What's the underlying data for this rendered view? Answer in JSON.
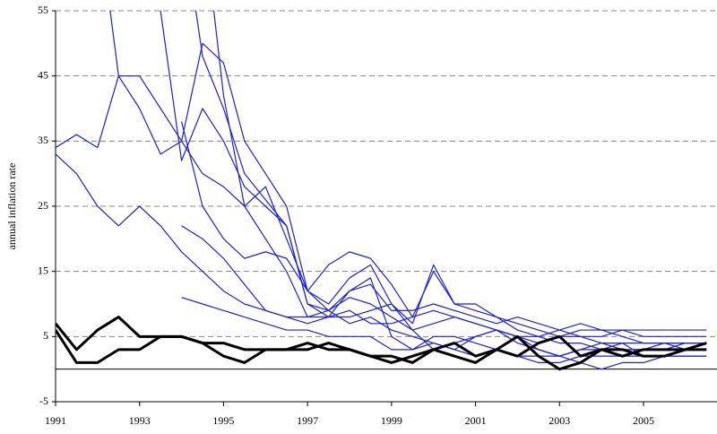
{
  "chart_data": {
    "type": "line",
    "y_label": "annual inflation rate",
    "x": [
      1991.0,
      1991.5,
      1992.0,
      1992.5,
      1993.0,
      1993.5,
      1994.0,
      1994.5,
      1995.0,
      1995.5,
      1996.0,
      1996.5,
      1997.0,
      1997.5,
      1998.0,
      1998.5,
      1999.0,
      1999.5,
      2000.0,
      2000.5,
      2001.0,
      2001.5,
      2002.0,
      2002.5,
      2003.0,
      2003.5,
      2004.0,
      2004.5,
      2005.0,
      2005.5,
      2006.0,
      2006.5
    ],
    "series": [
      {
        "color": "#1f1fd6",
        "line_width": 1.2,
        "values": [
          34,
          36,
          34,
          45,
          45,
          40,
          35,
          50,
          47,
          35,
          30,
          25,
          12,
          9,
          12,
          14,
          5,
          3,
          4,
          3,
          5,
          6,
          4,
          3,
          2,
          3,
          4,
          3,
          3,
          3,
          4,
          4
        ]
      },
      {
        "color": "#1f1fd6",
        "line_width": 1.2,
        "values": [
          33,
          30,
          25,
          22,
          25,
          22,
          18,
          15,
          12,
          10,
          9,
          8,
          8,
          9,
          7,
          8,
          6,
          5,
          4,
          3,
          2,
          3,
          2,
          1,
          1,
          2,
          2,
          2,
          2,
          2,
          3,
          3
        ]
      },
      {
        "color": "#1f1fd6",
        "line_width": 1.2,
        "values": [
          null,
          null,
          70,
          45,
          40,
          33,
          35,
          30,
          28,
          25,
          20,
          15,
          8,
          8,
          9,
          7,
          7,
          8,
          15,
          10,
          9,
          8,
          7,
          6,
          5,
          5,
          4,
          4,
          4,
          4,
          4,
          4
        ]
      },
      {
        "color": "#1f1fd6",
        "line_width": 1.2,
        "values": [
          null,
          null,
          null,
          null,
          70,
          55,
          32,
          40,
          35,
          28,
          25,
          22,
          10,
          8,
          12,
          13,
          9,
          9,
          10,
          9,
          8,
          7,
          8,
          7,
          6,
          7,
          6,
          6,
          6,
          6,
          6,
          6
        ]
      },
      {
        "color": "#1f1fd6",
        "line_width": 1.2,
        "values": [
          null,
          null,
          null,
          null,
          null,
          null,
          70,
          48,
          40,
          30,
          26,
          22,
          10,
          9,
          11,
          10,
          8,
          6,
          7,
          8,
          7,
          6,
          5,
          5,
          6,
          5,
          5,
          6,
          5,
          5,
          5,
          5
        ]
      },
      {
        "color": "#1f1fd6",
        "line_width": 1.2,
        "values": [
          null,
          null,
          null,
          null,
          null,
          null,
          null,
          70,
          42,
          25,
          28,
          20,
          12,
          10,
          14,
          16,
          10,
          7,
          16,
          10,
          10,
          8,
          6,
          5,
          4,
          4,
          3,
          3,
          3,
          4,
          3,
          3
        ]
      },
      {
        "color": "#1f1fd6",
        "line_width": 1.2,
        "values": [
          null,
          null,
          null,
          null,
          null,
          null,
          11,
          10,
          9,
          8,
          7,
          6,
          6,
          5,
          5,
          5,
          3,
          3,
          5,
          5,
          4,
          3,
          2,
          2,
          2,
          3,
          3,
          4,
          2,
          2,
          2,
          2
        ]
      },
      {
        "color": "#1f1fd6",
        "line_width": 1.2,
        "values": [
          null,
          null,
          null,
          null,
          null,
          null,
          38,
          25,
          20,
          17,
          18,
          17,
          12,
          16,
          18,
          17,
          13,
          8,
          9,
          8,
          7,
          6,
          5,
          4,
          5,
          6,
          6,
          5,
          4,
          4,
          4,
          4
        ]
      },
      {
        "color": "#1f1fd6",
        "line_width": 1.2,
        "values": [
          null,
          null,
          null,
          null,
          null,
          null,
          22,
          20,
          17,
          13,
          9,
          8,
          7,
          8,
          8,
          9,
          10,
          6,
          3,
          4,
          5,
          6,
          5,
          3,
          2,
          1,
          0,
          1,
          1,
          2,
          2,
          2
        ]
      },
      {
        "color": "#000000",
        "line_width": 3,
        "values": [
          7,
          3,
          6,
          8,
          5,
          5,
          5,
          4,
          4,
          3,
          3,
          3,
          4,
          3,
          3,
          2,
          1,
          2,
          3,
          2,
          1,
          3,
          5,
          2,
          0,
          1,
          3,
          3,
          2,
          2,
          3,
          4
        ]
      },
      {
        "color": "#000000",
        "line_width": 3,
        "values": [
          6,
          1,
          1,
          3,
          3,
          5,
          5,
          4,
          2,
          1,
          3,
          3,
          3,
          4,
          3,
          2,
          2,
          1,
          3,
          4,
          2,
          3,
          2,
          4,
          5,
          2,
          3,
          2,
          3,
          3,
          3,
          3
        ]
      }
    ],
    "xlim": [
      1991,
      2006.75
    ],
    "xticks": [
      1991,
      1993,
      1995,
      1997,
      1999,
      2001,
      2003,
      2005
    ],
    "ylim": [
      -5,
      55
    ],
    "yticks": [
      -5,
      5,
      15,
      25,
      35,
      45,
      55
    ],
    "grid": true
  }
}
